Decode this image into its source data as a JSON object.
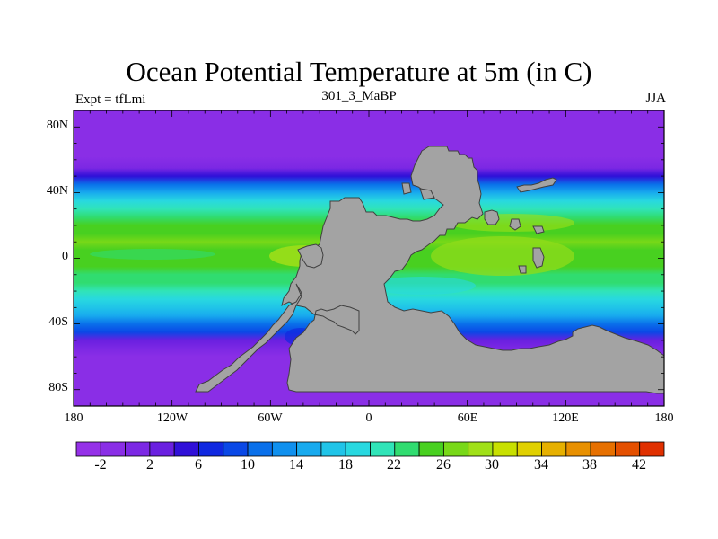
{
  "chart_data": {
    "type": "heatmap",
    "title": "Ocean Potential Temperature at 5m (in C)",
    "left_label": "Expt = tfLmi",
    "center_label": "301_3_MaBP",
    "right_label": "JJA",
    "x_ticks": [
      "180",
      "120W",
      "60W",
      "0",
      "60E",
      "120E",
      "180"
    ],
    "x_tick_values": [
      -180,
      -120,
      -60,
      0,
      60,
      120,
      180
    ],
    "y_ticks": [
      "80N",
      "40N",
      "0",
      "40S",
      "80S"
    ],
    "y_tick_values": [
      80,
      40,
      0,
      -40,
      -80
    ],
    "xlim": [
      -180,
      180
    ],
    "ylim": [
      -90,
      90
    ],
    "colorbar": {
      "levels": [
        -4,
        -2,
        0,
        2,
        4,
        6,
        8,
        10,
        12,
        14,
        16,
        18,
        20,
        22,
        24,
        26,
        28,
        30,
        32,
        34,
        36,
        38,
        40,
        42,
        44
      ],
      "tick_labels": [
        "-2",
        "2",
        "6",
        "10",
        "14",
        "18",
        "22",
        "26",
        "30",
        "34",
        "38",
        "42"
      ],
      "tick_values": [
        -2,
        2,
        6,
        10,
        14,
        18,
        22,
        26,
        30,
        34,
        38,
        42
      ],
      "colors": [
        "#9531e8",
        "#8a2ee6",
        "#7c28e4",
        "#6a20e0",
        "#3010d8",
        "#1028e0",
        "#0a48e6",
        "#0a70ea",
        "#1090ee",
        "#18aaee",
        "#20c4e8",
        "#28d8e0",
        "#30e4b8",
        "#30dc70",
        "#48d020",
        "#78d818",
        "#a0e018",
        "#c8e000",
        "#e0d000",
        "#e6b000",
        "#e89000",
        "#e67000",
        "#e45000",
        "#e03000"
      ]
    },
    "temperature_profile": {
      "latitudes": [
        90,
        75,
        62,
        55,
        50,
        45,
        40,
        35,
        30,
        25,
        20,
        15,
        10,
        5,
        0,
        -5,
        -10,
        -15,
        -20,
        -25,
        -30,
        -35,
        -40,
        -45,
        -50,
        -55,
        -60,
        -70,
        -90
      ],
      "values": [
        -1.5,
        -1.5,
        -1.0,
        1.0,
        5.0,
        10.0,
        14.0,
        18.0,
        21.0,
        23.0,
        24.5,
        25.5,
        26.0,
        25.5,
        24.5,
        24.0,
        23.5,
        22.5,
        21.0,
        19.0,
        17.0,
        14.5,
        11.5,
        8.0,
        3.0,
        0.0,
        -1.0,
        -1.5,
        -1.5
      ]
    },
    "land_color": "#a3a3a3",
    "land_outline_color": "#404040"
  }
}
